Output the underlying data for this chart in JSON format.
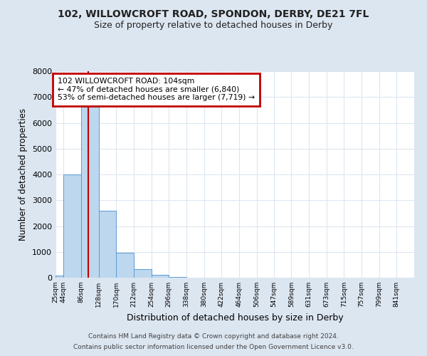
{
  "title1": "102, WILLOWCROFT ROAD, SPONDON, DERBY, DE21 7FL",
  "title2": "Size of property relative to detached houses in Derby",
  "xlabel": "Distribution of detached houses by size in Derby",
  "ylabel": "Number of detached properties",
  "annotation_line1": "102 WILLOWCROFT ROAD: 104sqm",
  "annotation_line2": "← 47% of detached houses are smaller (6,840)",
  "annotation_line3": "53% of semi-detached houses are larger (7,719) →",
  "property_sqm": 104,
  "bin_starts": [
    25,
    44,
    86,
    128,
    170,
    212,
    254,
    296,
    338,
    380,
    422,
    464,
    506,
    547,
    589,
    631,
    673,
    715,
    757,
    799,
    841
  ],
  "bin_labels": [
    "25sqm",
    "44sqm",
    "86sqm",
    "128sqm",
    "170sqm",
    "212sqm",
    "254sqm",
    "296sqm",
    "338sqm",
    "380sqm",
    "422sqm",
    "464sqm",
    "506sqm",
    "547sqm",
    "589sqm",
    "631sqm",
    "673sqm",
    "715sqm",
    "757sqm",
    "799sqm",
    "841sqm"
  ],
  "bar_heights": [
    70,
    4000,
    6620,
    2600,
    960,
    330,
    115,
    40,
    0,
    0,
    0,
    0,
    0,
    0,
    0,
    0,
    0,
    0,
    0,
    0
  ],
  "bar_color": "#bdd7ee",
  "bar_edge_color": "#5b9bd5",
  "vline_color": "#c00000",
  "vline_x": 104,
  "annotation_box_color": "#c00000",
  "ylim": [
    0,
    8000
  ],
  "yticks": [
    0,
    1000,
    2000,
    3000,
    4000,
    5000,
    6000,
    7000,
    8000
  ],
  "grid_color": "#dce6f1",
  "background_color": "#dce6f1",
  "plot_background": "#ffffff",
  "footer_line1": "Contains HM Land Registry data © Crown copyright and database right 2024.",
  "footer_line2": "Contains public sector information licensed under the Open Government Licence v3.0."
}
